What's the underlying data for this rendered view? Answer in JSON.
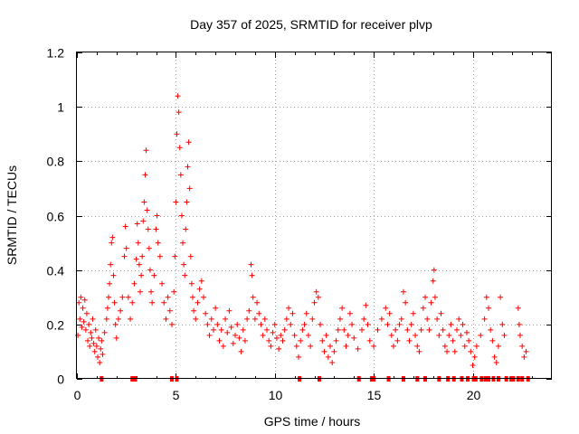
{
  "chart_data": {
    "type": "scatter",
    "title": "Day 357 of 2025, SRMTID for receiver plvp",
    "xlabel": "GPS time / hours",
    "ylabel": "SRMTID / TECUs",
    "xlim": [
      0,
      24
    ],
    "ylim": [
      0,
      1.2
    ],
    "xticks": [
      0,
      5,
      10,
      15,
      20
    ],
    "yticks": [
      0,
      0.2,
      0.4,
      0.6,
      0.8,
      1.0,
      1.2
    ],
    "xtick_labels": [
      "0",
      "5",
      "10",
      "15",
      "20"
    ],
    "ytick_labels": [
      "0",
      "0.2",
      "0.4",
      "0.6",
      "0.8",
      "1",
      "1.2"
    ],
    "grid": true,
    "series": [
      {
        "name": "SRMTID",
        "marker": "+",
        "color": "#ff0000",
        "points": [
          [
            0.05,
            0.16
          ],
          [
            0.1,
            0.28
          ],
          [
            0.15,
            0.22
          ],
          [
            0.2,
            0.3
          ],
          [
            0.25,
            0.19
          ],
          [
            0.3,
            0.26
          ],
          [
            0.35,
            0.21
          ],
          [
            0.4,
            0.29
          ],
          [
            0.45,
            0.18
          ],
          [
            0.5,
            0.24
          ],
          [
            0.55,
            0.14
          ],
          [
            0.6,
            0.2
          ],
          [
            0.65,
            0.12
          ],
          [
            0.7,
            0.17
          ],
          [
            0.75,
            0.15
          ],
          [
            0.8,
            0.22
          ],
          [
            0.85,
            0.13
          ],
          [
            0.9,
            0.1
          ],
          [
            0.95,
            0.18
          ],
          [
            1.0,
            0.12
          ],
          [
            1.05,
            0.08
          ],
          [
            1.1,
            0.15
          ],
          [
            1.15,
            0.06
          ],
          [
            1.2,
            0.11
          ],
          [
            1.25,
            0.14
          ],
          [
            1.3,
            0.09
          ],
          [
            1.4,
            0.17
          ],
          [
            1.5,
            0.22
          ],
          [
            1.55,
            0.26
          ],
          [
            1.6,
            0.3
          ],
          [
            1.65,
            0.35
          ],
          [
            1.7,
            0.42
          ],
          [
            1.75,
            0.5
          ],
          [
            1.8,
            0.52
          ],
          [
            1.85,
            0.38
          ],
          [
            1.9,
            0.28
          ],
          [
            1.95,
            0.2
          ],
          [
            2.0,
            0.15
          ],
          [
            2.1,
            0.22
          ],
          [
            2.2,
            0.25
          ],
          [
            2.3,
            0.3
          ],
          [
            2.4,
            0.45
          ],
          [
            2.45,
            0.56
          ],
          [
            2.5,
            0.48
          ],
          [
            2.6,
            0.3
          ],
          [
            2.7,
            0.22
          ],
          [
            2.8,
            0.28
          ],
          [
            2.9,
            0.35
          ],
          [
            3.0,
            0.44
          ],
          [
            3.05,
            0.57
          ],
          [
            3.1,
            0.5
          ],
          [
            3.15,
            0.42
          ],
          [
            3.2,
            0.32
          ],
          [
            3.25,
            0.38
          ],
          [
            3.3,
            0.45
          ],
          [
            3.35,
            0.58
          ],
          [
            3.4,
            0.65
          ],
          [
            3.45,
            0.75
          ],
          [
            3.5,
            0.84
          ],
          [
            3.55,
            0.62
          ],
          [
            3.6,
            0.55
          ],
          [
            3.65,
            0.48
          ],
          [
            3.7,
            0.4
          ],
          [
            3.75,
            0.32
          ],
          [
            3.8,
            0.28
          ],
          [
            3.9,
            0.38
          ],
          [
            4.0,
            0.55
          ],
          [
            4.05,
            0.6
          ],
          [
            4.1,
            0.5
          ],
          [
            4.2,
            0.45
          ],
          [
            4.3,
            0.35
          ],
          [
            4.4,
            0.28
          ],
          [
            4.5,
            0.22
          ],
          [
            4.6,
            0.3
          ],
          [
            4.7,
            0.25
          ],
          [
            4.8,
            0.2
          ],
          [
            4.9,
            0.32
          ],
          [
            4.95,
            0.45
          ],
          [
            5.0,
            0.65
          ],
          [
            5.05,
            0.9
          ],
          [
            5.1,
            1.04
          ],
          [
            5.15,
            0.98
          ],
          [
            5.2,
            0.85
          ],
          [
            5.25,
            0.75
          ],
          [
            5.3,
            0.6
          ],
          [
            5.35,
            0.5
          ],
          [
            5.4,
            0.42
          ],
          [
            5.45,
            0.38
          ],
          [
            5.5,
            0.55
          ],
          [
            5.55,
            0.65
          ],
          [
            5.6,
            0.78
          ],
          [
            5.65,
            0.87
          ],
          [
            5.7,
            0.7
          ],
          [
            5.75,
            0.45
          ],
          [
            5.8,
            0.35
          ],
          [
            5.85,
            0.3
          ],
          [
            5.9,
            0.25
          ],
          [
            6.0,
            0.22
          ],
          [
            6.1,
            0.28
          ],
          [
            6.2,
            0.33
          ],
          [
            6.3,
            0.36
          ],
          [
            6.4,
            0.3
          ],
          [
            6.5,
            0.24
          ],
          [
            6.6,
            0.2
          ],
          [
            6.7,
            0.16
          ],
          [
            6.8,
            0.22
          ],
          [
            6.9,
            0.18
          ],
          [
            7.0,
            0.26
          ],
          [
            7.1,
            0.2
          ],
          [
            7.2,
            0.14
          ],
          [
            7.3,
            0.18
          ],
          [
            7.4,
            0.12
          ],
          [
            7.5,
            0.22
          ],
          [
            7.6,
            0.17
          ],
          [
            7.7,
            0.25
          ],
          [
            7.8,
            0.19
          ],
          [
            7.9,
            0.13
          ],
          [
            8.0,
            0.16
          ],
          [
            8.1,
            0.2
          ],
          [
            8.2,
            0.15
          ],
          [
            8.3,
            0.1
          ],
          [
            8.4,
            0.18
          ],
          [
            8.5,
            0.14
          ],
          [
            8.6,
            0.22
          ],
          [
            8.7,
            0.25
          ],
          [
            8.8,
            0.42
          ],
          [
            8.85,
            0.38
          ],
          [
            8.9,
            0.3
          ],
          [
            9.0,
            0.22
          ],
          [
            9.1,
            0.28
          ],
          [
            9.2,
            0.24
          ],
          [
            9.3,
            0.2
          ],
          [
            9.4,
            0.16
          ],
          [
            9.5,
            0.22
          ],
          [
            9.6,
            0.18
          ],
          [
            9.7,
            0.14
          ],
          [
            9.8,
            0.12
          ],
          [
            9.9,
            0.17
          ],
          [
            10.0,
            0.2
          ],
          [
            10.1,
            0.15
          ],
          [
            10.2,
            0.11
          ],
          [
            10.3,
            0.16
          ],
          [
            10.4,
            0.14
          ],
          [
            10.5,
            0.18
          ],
          [
            10.6,
            0.22
          ],
          [
            10.7,
            0.26
          ],
          [
            10.8,
            0.2
          ],
          [
            10.9,
            0.24
          ],
          [
            11.0,
            0.16
          ],
          [
            11.1,
            0.12
          ],
          [
            11.2,
            0.08
          ],
          [
            11.3,
            0.14
          ],
          [
            11.4,
            0.18
          ],
          [
            11.5,
            0.2
          ],
          [
            11.6,
            0.24
          ],
          [
            11.7,
            0.16
          ],
          [
            11.8,
            0.12
          ],
          [
            11.9,
            0.22
          ],
          [
            12.0,
            0.28
          ],
          [
            12.1,
            0.32
          ],
          [
            12.2,
            0.3
          ],
          [
            12.3,
            0.2
          ],
          [
            12.4,
            0.14
          ],
          [
            12.5,
            0.1
          ],
          [
            12.6,
            0.16
          ],
          [
            12.7,
            0.08
          ],
          [
            12.8,
            0.12
          ],
          [
            12.9,
            0.06
          ],
          [
            13.0,
            0.1
          ],
          [
            13.1,
            0.14
          ],
          [
            13.2,
            0.18
          ],
          [
            13.3,
            0.22
          ],
          [
            13.4,
            0.26
          ],
          [
            13.5,
            0.18
          ],
          [
            13.6,
            0.12
          ],
          [
            13.7,
            0.16
          ],
          [
            13.8,
            0.24
          ],
          [
            13.9,
            0.2
          ],
          [
            14.0,
            0.15
          ],
          [
            14.2,
            0.11
          ],
          [
            14.4,
            0.18
          ],
          [
            14.5,
            0.22
          ],
          [
            14.6,
            0.27
          ],
          [
            14.7,
            0.2
          ],
          [
            14.8,
            0.14
          ],
          [
            15.0,
            0.12
          ],
          [
            15.2,
            0.18
          ],
          [
            15.4,
            0.22
          ],
          [
            15.6,
            0.26
          ],
          [
            15.7,
            0.2
          ],
          [
            15.8,
            0.24
          ],
          [
            15.9,
            0.16
          ],
          [
            16.0,
            0.12
          ],
          [
            16.1,
            0.18
          ],
          [
            16.2,
            0.14
          ],
          [
            16.3,
            0.2
          ],
          [
            16.4,
            0.22
          ],
          [
            16.5,
            0.32
          ],
          [
            16.6,
            0.28
          ],
          [
            16.7,
            0.18
          ],
          [
            16.8,
            0.14
          ],
          [
            16.9,
            0.2
          ],
          [
            17.0,
            0.24
          ],
          [
            17.1,
            0.16
          ],
          [
            17.2,
            0.12
          ],
          [
            17.3,
            0.1
          ],
          [
            17.4,
            0.18
          ],
          [
            17.5,
            0.26
          ],
          [
            17.6,
            0.3
          ],
          [
            17.7,
            0.22
          ],
          [
            17.8,
            0.18
          ],
          [
            17.9,
            0.28
          ],
          [
            18.0,
            0.36
          ],
          [
            18.05,
            0.4
          ],
          [
            18.1,
            0.3
          ],
          [
            18.2,
            0.22
          ],
          [
            18.3,
            0.16
          ],
          [
            18.4,
            0.24
          ],
          [
            18.5,
            0.18
          ],
          [
            18.6,
            0.12
          ],
          [
            18.7,
            0.1
          ],
          [
            18.8,
            0.16
          ],
          [
            18.9,
            0.2
          ],
          [
            19.0,
            0.14
          ],
          [
            19.1,
            0.1
          ],
          [
            19.2,
            0.18
          ],
          [
            19.3,
            0.22
          ],
          [
            19.4,
            0.16
          ],
          [
            19.5,
            0.2
          ],
          [
            19.6,
            0.12
          ],
          [
            19.7,
            0.17
          ],
          [
            19.8,
            0.14
          ],
          [
            19.9,
            0.1
          ],
          [
            20.0,
            0.05
          ],
          [
            20.1,
            0.08
          ],
          [
            20.2,
            0.12
          ],
          [
            20.4,
            0.16
          ],
          [
            20.6,
            0.22
          ],
          [
            20.7,
            0.3
          ],
          [
            20.8,
            0.26
          ],
          [
            20.9,
            0.18
          ],
          [
            21.0,
            0.14
          ],
          [
            21.1,
            0.08
          ],
          [
            21.2,
            0.06
          ],
          [
            21.3,
            0.12
          ],
          [
            21.4,
            0.3
          ],
          [
            21.5,
            0.2
          ],
          [
            21.6,
            0.16
          ],
          [
            22.3,
            0.26
          ],
          [
            22.35,
            0.2
          ],
          [
            22.4,
            0.16
          ],
          [
            22.5,
            0.12
          ],
          [
            22.6,
            0.08
          ],
          [
            22.7,
            0.1
          ]
        ]
      }
    ],
    "zero_marks_x": [
      1.25,
      2.8,
      2.95,
      4.8,
      5.05,
      11.25,
      12.25,
      14.25,
      14.9,
      15.0,
      15.75,
      16.5,
      17.2,
      17.6,
      18.3,
      18.75,
      19.05,
      19.45,
      19.75,
      20.05,
      20.15,
      20.45,
      20.65,
      20.8,
      21.05,
      21.3,
      21.7,
      21.95,
      22.05,
      22.3,
      22.5,
      22.8
    ]
  }
}
